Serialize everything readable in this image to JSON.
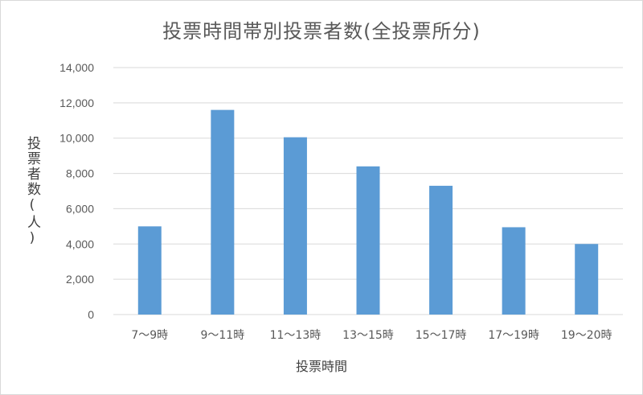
{
  "chart_data": {
    "type": "bar",
    "title": "投票時間帯別投票者数(全投票所分)",
    "xlabel": "投票時間",
    "ylabel": "投票者数(人)",
    "categories": [
      "7〜9時",
      "9〜11時",
      "11〜13時",
      "13〜15時",
      "15〜17時",
      "17〜19時",
      "19〜20時"
    ],
    "values": [
      5000,
      11600,
      10050,
      8400,
      7300,
      4950,
      4000
    ],
    "ylim": [
      0,
      14000
    ],
    "yticks": [
      "0",
      "2,000",
      "4,000",
      "6,000",
      "8,000",
      "10,000",
      "12,000",
      "14,000"
    ],
    "grid": true,
    "bar_color": "#5b9bd5",
    "grid_color": "#d9d9d9"
  }
}
